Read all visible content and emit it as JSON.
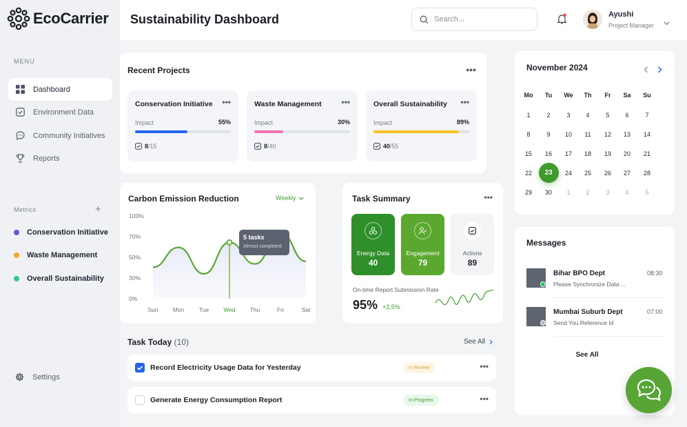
{
  "brand": {
    "name": "EcoCarrier"
  },
  "sidebar": {
    "menu_caption": "MENU",
    "items": [
      {
        "label": "Dashboard",
        "icon": "dashboard-grid-icon",
        "active": true
      },
      {
        "label": "Environment Data",
        "icon": "checkbox-icon"
      },
      {
        "label": "Community Initiatives",
        "icon": "chat-bubble-icon"
      },
      {
        "label": "Reports",
        "icon": "trophy-icon"
      }
    ],
    "metrics_caption": "Metrics",
    "metrics_add": "+",
    "metrics": [
      {
        "label": "Conservation Initiative",
        "color": "#5b5bd6"
      },
      {
        "label": "Waste Management",
        "color": "#f5a623"
      },
      {
        "label": "Overall Sustainability",
        "color": "#2ecc8a"
      }
    ],
    "settings_label": "Settings"
  },
  "header": {
    "title": "Sustainability Dashboard",
    "search_placeholder": "Search...",
    "user_name": "Ayushi",
    "user_role": "Project Manager"
  },
  "recent_projects": {
    "title": "Recent Projects",
    "more": "•••",
    "projects": [
      {
        "name": "Conservation Initiative",
        "impact_label": "Impact",
        "impact": "55%",
        "progress": 0.55,
        "color": "#2563eb",
        "done": "8",
        "total": "/15"
      },
      {
        "name": "Waste Management",
        "impact_label": "Impact",
        "impact": "30%",
        "progress": 0.3,
        "color": "#f472b6",
        "done": "8",
        "total": "/40"
      },
      {
        "name": "Overall Sustainability",
        "impact_label": "Impact",
        "impact": "89%",
        "progress": 0.89,
        "color": "#fbbf24",
        "done": "40",
        "total": "/55"
      }
    ]
  },
  "carbon": {
    "title": "Carbon Emission Reduction",
    "filter": "Weekly",
    "tooltip_title": "5 tasks",
    "tooltip_sub": "Almost completed"
  },
  "chart_data": {
    "type": "area",
    "title": "Carbon Emission Reduction",
    "categories": [
      "Sun",
      "Mon",
      "Tue",
      "Wed",
      "Thu",
      "Fri",
      "Sat"
    ],
    "yticks": [
      "100%",
      "70%",
      "50%",
      "30%",
      "0%"
    ],
    "ylim": [
      0,
      100
    ],
    "highlight": "Wed",
    "series": [
      {
        "values": [
          38,
          62,
          30,
          68,
          42,
          80,
          45
        ],
        "color": "#5aa832"
      }
    ]
  },
  "task_summary": {
    "title": "Task Summary",
    "more": "•••",
    "tiles": [
      {
        "label": "Energy Data",
        "value": "40"
      },
      {
        "label": "Engagement",
        "value": "79"
      },
      {
        "label": "Actions",
        "value": "89"
      }
    ],
    "rate_label": "On-time Report Submission Rate",
    "rate_value": "95%",
    "rate_change": "+2,5%"
  },
  "calendar": {
    "title": "November 2024",
    "weekdays": [
      "Mo",
      "Tu",
      "We",
      "Th",
      "Fr",
      "Sa",
      "Su"
    ],
    "weeks": [
      [
        "1",
        "2",
        "3",
        "4",
        "5",
        "6",
        "7"
      ],
      [
        "8",
        "9",
        "10",
        "11",
        "12",
        "13",
        "14"
      ],
      [
        "15",
        "16",
        "17",
        "18",
        "19",
        "20",
        "21"
      ],
      [
        "22",
        "23",
        "24",
        "25",
        "26",
        "27",
        "28"
      ],
      [
        "29",
        "30",
        "1",
        "2",
        "3",
        "4",
        "5"
      ]
    ],
    "selected": "23"
  },
  "messages": {
    "title": "Messages",
    "items": [
      {
        "name": "Bihar BPO Dept",
        "text": "Please Synchronize Data ...",
        "time": "08:30",
        "status_color": "#22c55e"
      },
      {
        "name": "Mumbai Suburb Dept",
        "text": "Send You Reference Id",
        "time": "07:00",
        "status_color": "#b5b9c2"
      }
    ],
    "see_all": "See All"
  },
  "task_today": {
    "title": "Task Today",
    "count": "(10)",
    "see_all": "See All",
    "tasks": [
      {
        "text": "Record Electricity Usage Data for Yesterday",
        "status": "In Review",
        "checked": true
      },
      {
        "text": "Generate Energy Consumption Report",
        "status": "In Progress",
        "checked": false
      }
    ]
  }
}
